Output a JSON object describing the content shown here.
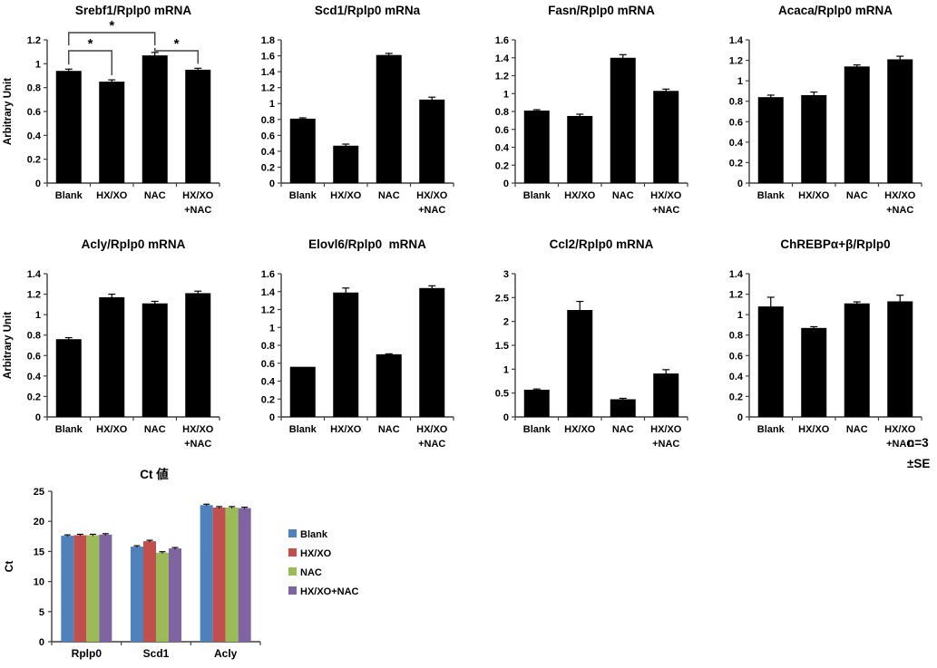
{
  "figure": {
    "note_line1": "n=3",
    "note_line2": "±SE"
  },
  "chart_data": [
    {
      "id": "srebf1",
      "type": "bar",
      "title": "Srebf1/Rplp0 mRNA",
      "ylabel": "Arbitrary Unit",
      "categories": [
        "Blank",
        "HX/XO",
        "NAC",
        "HX/XO\n+NAC"
      ],
      "values": [
        0.94,
        0.85,
        1.07,
        0.95
      ],
      "errors": [
        0.015,
        0.015,
        0.025,
        0.012
      ],
      "ylim": [
        0,
        1.2
      ],
      "ytick_step": 0.2,
      "bar_color": "#000000",
      "significance": [
        {
          "pair": [
            0,
            1
          ],
          "label": "*"
        },
        {
          "pair": [
            0,
            2
          ],
          "label": "*"
        },
        {
          "pair": [
            2,
            3
          ],
          "label": "*"
        }
      ]
    },
    {
      "id": "scd1",
      "type": "bar",
      "title": "Scd1/Rplp0 mRNa",
      "ylabel": "",
      "categories": [
        "Blank",
        "HX/XO",
        "NAC",
        "HX/XO\n+NAC"
      ],
      "values": [
        0.81,
        0.47,
        1.61,
        1.05
      ],
      "errors": [
        0.01,
        0.02,
        0.02,
        0.03
      ],
      "ylim": [
        0,
        1.8
      ],
      "ytick_step": 0.2,
      "bar_color": "#000000"
    },
    {
      "id": "fasn",
      "type": "bar",
      "title": "Fasn/Rplp0 mRNA",
      "ylabel": "",
      "categories": [
        "Blank",
        "HX/XO",
        "NAC",
        "HX/XO\n+NAC"
      ],
      "values": [
        0.81,
        0.75,
        1.4,
        1.03
      ],
      "errors": [
        0.01,
        0.02,
        0.035,
        0.02
      ],
      "ylim": [
        0,
        1.6
      ],
      "ytick_step": 0.2,
      "bar_color": "#000000"
    },
    {
      "id": "acaca",
      "type": "bar",
      "title": "Acaca/Rplp0 mRNA",
      "ylabel": "",
      "categories": [
        "Blank",
        "HX/XO",
        "NAC",
        "HX/XO\n+NAC"
      ],
      "values": [
        0.84,
        0.86,
        1.14,
        1.21
      ],
      "errors": [
        0.02,
        0.03,
        0.015,
        0.03
      ],
      "ylim": [
        0,
        1.4
      ],
      "ytick_step": 0.2,
      "bar_color": "#000000"
    },
    {
      "id": "acly",
      "type": "bar",
      "title": "Acly/Rplp0 mRNA",
      "ylabel": "Arbitrary Unit",
      "categories": [
        "Blank",
        "HX/XO",
        "NAC",
        "HX/XO\n+NAC"
      ],
      "values": [
        0.76,
        1.17,
        1.11,
        1.21
      ],
      "errors": [
        0.015,
        0.03,
        0.02,
        0.02
      ],
      "ylim": [
        0,
        1.4
      ],
      "ytick_step": 0.2,
      "bar_color": "#000000"
    },
    {
      "id": "elovl6",
      "type": "bar",
      "title": "Elovl6/Rplp0  mRNA",
      "ylabel": "",
      "categories": [
        "Blank",
        "HX/XO",
        "NAC",
        "HX/XO\n+NAC"
      ],
      "values": [
        0.56,
        1.39,
        0.7,
        1.44
      ],
      "errors": [
        0,
        0.05,
        0.005,
        0.025
      ],
      "ylim": [
        0,
        1.6
      ],
      "ytick_step": 0.2,
      "bar_color": "#000000"
    },
    {
      "id": "ccl2",
      "type": "bar",
      "title": "Ccl2/Rplp0 mRNA",
      "ylabel": "",
      "categories": [
        "Blank",
        "HX/XO",
        "NAC",
        "HX/XO\n+NAC"
      ],
      "values": [
        0.57,
        2.24,
        0.37,
        0.91
      ],
      "errors": [
        0.015,
        0.18,
        0.02,
        0.08
      ],
      "ylim": [
        0,
        3
      ],
      "ytick_step": 0.5,
      "bar_color": "#000000"
    },
    {
      "id": "chrebp",
      "type": "bar",
      "title": "ChREBPα+β/Rplp0",
      "ylabel": "",
      "categories": [
        "Blank",
        "HX/XO",
        "NAC",
        "HX/XO\n+NAC"
      ],
      "values": [
        1.08,
        0.87,
        1.11,
        1.13
      ],
      "errors": [
        0.09,
        0.012,
        0.015,
        0.06
      ],
      "ylim": [
        0,
        1.4
      ],
      "ytick_step": 0.2,
      "bar_color": "#000000"
    },
    {
      "id": "ct",
      "type": "grouped_bar",
      "title": "Ct 値",
      "ylabel": "Ct",
      "categories": [
        "Rplp0",
        "Scd1",
        "Acly"
      ],
      "series": [
        {
          "name": "Blank",
          "color": "#4F81BD",
          "values": [
            17.6,
            15.8,
            22.7
          ],
          "errors": [
            0.1,
            0.1,
            0.15
          ]
        },
        {
          "name": "HX/XO",
          "color": "#C0504D",
          "values": [
            17.7,
            16.7,
            22.3
          ],
          "errors": [
            0.1,
            0.15,
            0.1
          ]
        },
        {
          "name": "NAC",
          "color": "#9BBB59",
          "values": [
            17.7,
            14.8,
            22.3
          ],
          "errors": [
            0.1,
            0.1,
            0.1
          ]
        },
        {
          "name": "HX/XO+NAC",
          "color": "#8064A2",
          "values": [
            17.8,
            15.5,
            22.2
          ],
          "errors": [
            0.1,
            0.12,
            0.1
          ]
        }
      ],
      "ylim": [
        0,
        25
      ],
      "ytick_step": 5,
      "legend_position": "right"
    }
  ]
}
